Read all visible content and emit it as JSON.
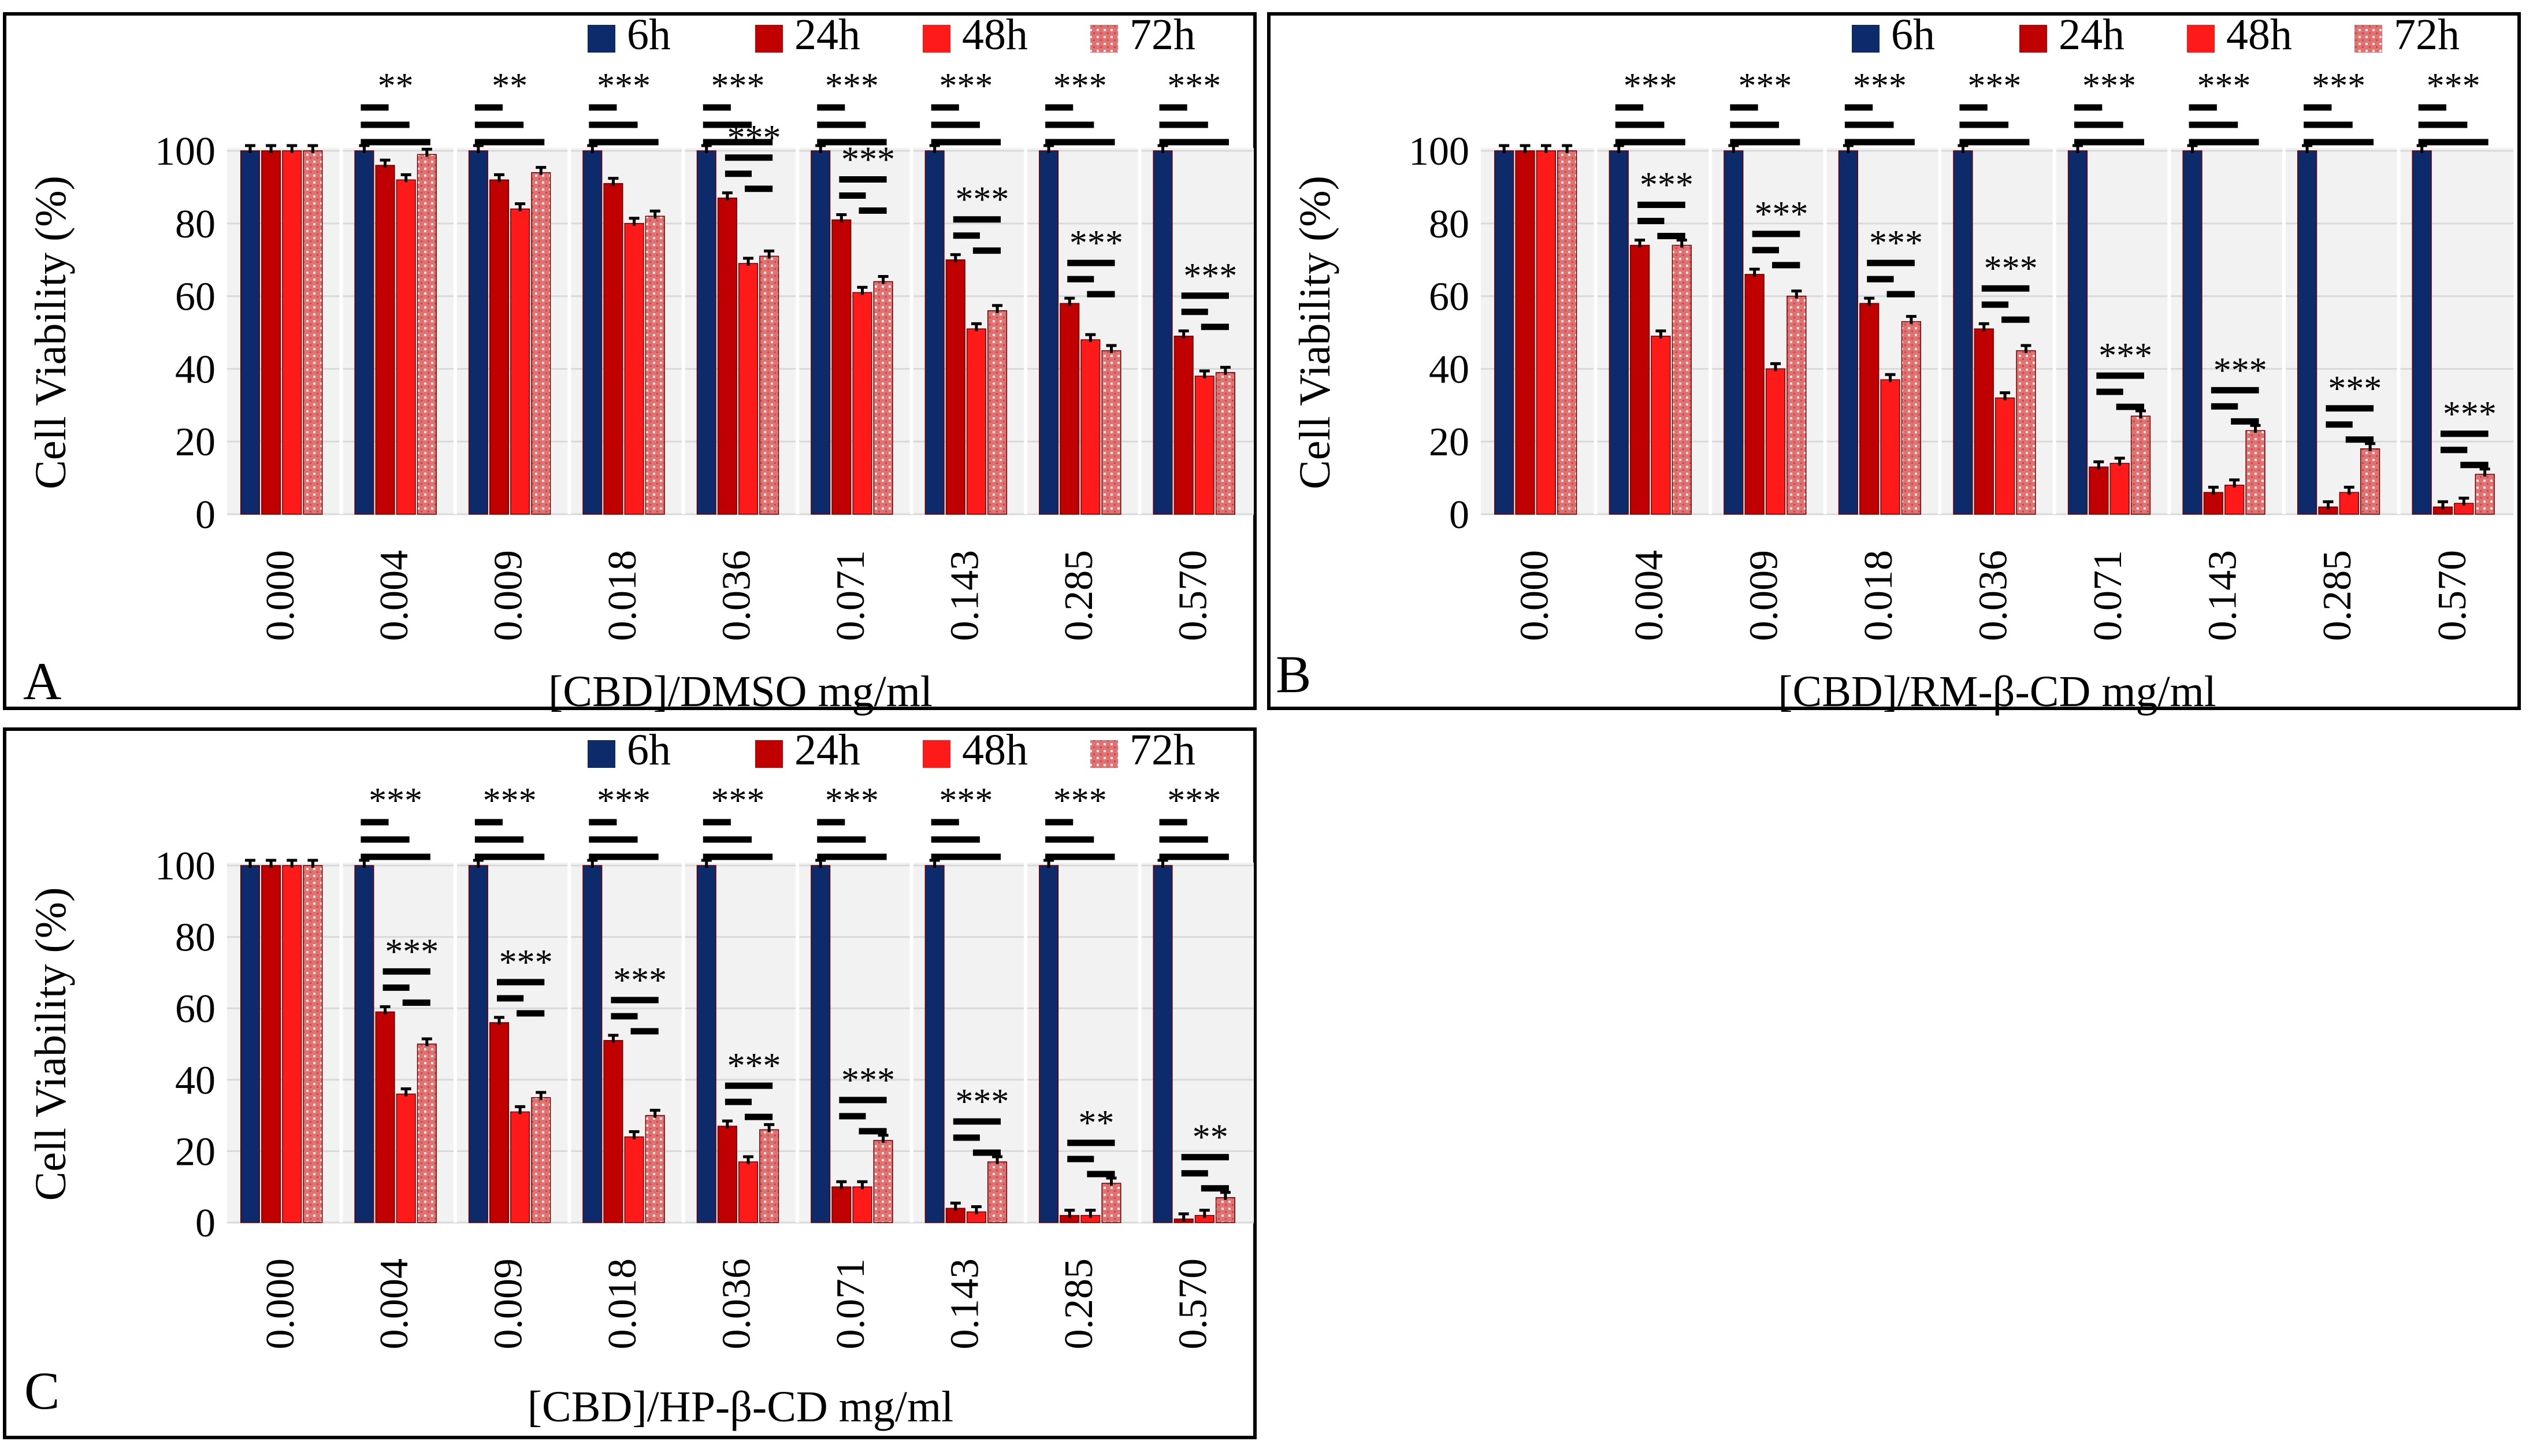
{
  "colors": {
    "h6": "#0d2a6a",
    "h24": "#c00000",
    "h48": "#ff1a1a",
    "h72": "#e07272",
    "plot_bg": "#f2f2f2"
  },
  "chart_data": [
    {
      "type": "bar",
      "panel": "A",
      "title": "",
      "xlabel": "[CBD]/DMSO mg/ml",
      "ylabel": "Cell Viability (%)",
      "ylim": [
        0,
        100
      ],
      "yticks": [
        "0",
        "20",
        "40",
        "60",
        "80",
        "100"
      ],
      "grid": true,
      "legend": "top-right",
      "categories": [
        "0.000",
        "0.004",
        "0.009",
        "0.018",
        "0.036",
        "0.071",
        "0.143",
        "0.285",
        "0.570"
      ],
      "series": [
        {
          "name": "6h",
          "values": [
            100,
            100,
            100,
            100,
            100,
            100,
            100,
            100,
            100
          ]
        },
        {
          "name": "24h",
          "values": [
            100,
            96,
            92,
            91,
            87,
            81,
            70,
            58,
            49
          ]
        },
        {
          "name": "48h",
          "values": [
            100,
            92,
            84,
            80,
            69,
            61,
            51,
            48,
            38
          ]
        },
        {
          "name": "72h",
          "values": [
            100,
            99,
            94,
            82,
            71,
            64,
            56,
            45,
            39
          ]
        }
      ],
      "annotations": [
        "",
        "**",
        "**",
        "***",
        "***",
        "***",
        "***",
        "***",
        "***"
      ],
      "annotations_lower": [
        "",
        "",
        "",
        "",
        "***",
        "***",
        "***",
        "***",
        "***"
      ]
    },
    {
      "type": "bar",
      "panel": "B",
      "title": "",
      "xlabel": "[CBD]/RM-β-CD mg/ml",
      "ylabel": "Cell Viability (%)",
      "ylim": [
        0,
        100
      ],
      "yticks": [
        "0",
        "20",
        "40",
        "60",
        "80",
        "100"
      ],
      "grid": true,
      "legend": "top-right",
      "categories": [
        "0.000",
        "0.004",
        "0.009",
        "0.018",
        "0.036",
        "0.071",
        "0.143",
        "0.285",
        "0.570"
      ],
      "series": [
        {
          "name": "6h",
          "values": [
            100,
            100,
            100,
            100,
            100,
            100,
            100,
            100,
            100
          ]
        },
        {
          "name": "24h",
          "values": [
            100,
            74,
            66,
            58,
            51,
            13,
            6,
            2,
            2
          ]
        },
        {
          "name": "48h",
          "values": [
            100,
            49,
            40,
            37,
            32,
            14,
            8,
            6,
            3
          ]
        },
        {
          "name": "72h",
          "values": [
            100,
            74,
            60,
            53,
            45,
            27,
            23,
            18,
            11
          ]
        }
      ],
      "annotations": [
        "",
        "***",
        "***",
        "***",
        "***",
        "***",
        "***",
        "***",
        "***"
      ],
      "annotations_lower": [
        "",
        "***",
        "***",
        "***",
        "***",
        "***",
        "***",
        "***",
        "***"
      ]
    },
    {
      "type": "bar",
      "panel": "C",
      "title": "",
      "xlabel": "[CBD]/HP-β-CD mg/ml",
      "ylabel": "Cell Viability (%)",
      "ylim": [
        0,
        100
      ],
      "yticks": [
        "0",
        "20",
        "40",
        "60",
        "80",
        "100"
      ],
      "grid": true,
      "legend": "top-right",
      "categories": [
        "0.000",
        "0.004",
        "0.009",
        "0.018",
        "0.036",
        "0.071",
        "0.143",
        "0.285",
        "0.570"
      ],
      "series": [
        {
          "name": "6h",
          "values": [
            100,
            100,
            100,
            100,
            100,
            100,
            100,
            100,
            100
          ]
        },
        {
          "name": "24h",
          "values": [
            100,
            59,
            56,
            51,
            27,
            10,
            4,
            2,
            1
          ]
        },
        {
          "name": "48h",
          "values": [
            100,
            36,
            31,
            24,
            17,
            10,
            3,
            2,
            2
          ]
        },
        {
          "name": "72h",
          "values": [
            100,
            50,
            35,
            30,
            26,
            23,
            17,
            11,
            7
          ]
        }
      ],
      "annotations": [
        "",
        "***",
        "***",
        "***",
        "***",
        "***",
        "***",
        "***",
        "***"
      ],
      "annotations_lower": [
        "",
        "***",
        "***",
        "***",
        "***",
        "***",
        "***",
        "**",
        "**"
      ]
    }
  ]
}
